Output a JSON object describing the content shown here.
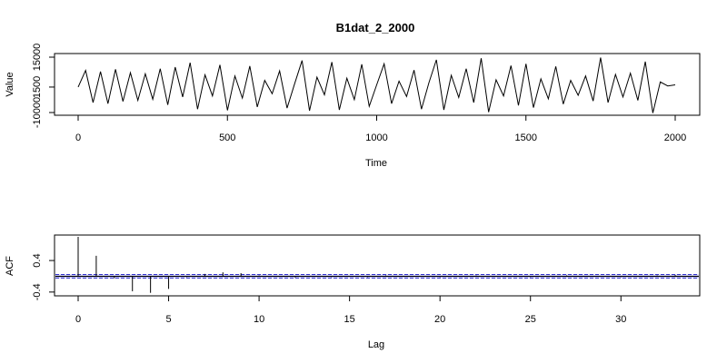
{
  "chart_data": [
    {
      "type": "line",
      "title": "B1dat_2_2000",
      "xlabel": "Time",
      "ylabel": "Value",
      "xlim": [
        0,
        2000
      ],
      "ylim": [
        -10000,
        15000
      ],
      "xticks": [
        0,
        500,
        1000,
        1500,
        2000
      ],
      "xtick_labels": [
        "0",
        "500",
        "1000",
        "1500",
        "2000"
      ],
      "yticks": [
        -10000,
        1500,
        15000
      ],
      "ytick_labels": [
        "-10000",
        "1500",
        "15000"
      ],
      "series": [
        {
          "line_color": "#000000",
          "x": [
            0,
            25,
            50,
            75,
            100,
            125,
            150,
            175,
            200,
            225,
            250,
            275,
            300,
            325,
            350,
            375,
            400,
            425,
            450,
            475,
            500,
            525,
            550,
            575,
            600,
            625,
            650,
            675,
            700,
            725,
            750,
            775,
            800,
            825,
            850,
            875,
            900,
            925,
            950,
            975,
            1000,
            1025,
            1050,
            1075,
            1100,
            1125,
            1150,
            1175,
            1200,
            1225,
            1250,
            1275,
            1300,
            1325,
            1350,
            1375,
            1400,
            1425,
            1450,
            1475,
            1500,
            1525,
            1550,
            1575,
            1600,
            1625,
            1650,
            1675,
            1700,
            1725,
            1750,
            1775,
            1800,
            1825,
            1850,
            1875,
            1900,
            1925,
            1950,
            1975,
            2000
          ],
          "y": [
            1500,
            9000,
            -5500,
            8500,
            -6000,
            9500,
            -5000,
            8000,
            -4500,
            7500,
            -4000,
            9800,
            -6500,
            10500,
            -3000,
            12500,
            -8500,
            7000,
            -2500,
            11500,
            -9000,
            6500,
            -3500,
            11000,
            -7500,
            4500,
            -1500,
            8800,
            -8000,
            3000,
            13500,
            -9200,
            6000,
            -2000,
            12800,
            -8800,
            5500,
            -4200,
            11800,
            -7200,
            2500,
            12000,
            -6000,
            4200,
            -2800,
            9200,
            -8500,
            3500,
            13800,
            -8800,
            6800,
            -3200,
            9800,
            -5500,
            14500,
            -9800,
            4800,
            -2500,
            11200,
            -6800,
            12000,
            -7800,
            5200,
            -3800,
            10800,
            -6200,
            4500,
            -2200,
            6500,
            -4800,
            14800,
            -5500,
            7200,
            -3000,
            7800,
            -4500,
            13000,
            -10200,
            3800,
            2000,
            2500
          ]
        }
      ]
    },
    {
      "type": "bar",
      "xlabel": "Lag",
      "ylabel": "ACF",
      "xlim": [
        0,
        33
      ],
      "ylim": [
        -0.45,
        1.0
      ],
      "xticks": [
        0,
        5,
        10,
        15,
        20,
        25,
        30
      ],
      "xtick_labels": [
        "0",
        "5",
        "10",
        "15",
        "20",
        "25",
        "30"
      ],
      "yticks": [
        -0.4,
        0.4
      ],
      "ytick_labels": [
        "-0.4",
        "0.4"
      ],
      "confidence_band": [
        -0.045,
        0.045
      ],
      "band_color": "#3333cc",
      "lags": [
        0,
        1,
        2,
        3,
        4,
        5,
        6,
        7,
        8,
        9,
        10,
        11,
        12,
        13,
        14,
        15,
        16,
        17,
        18,
        19,
        20,
        21,
        22,
        23,
        24,
        25,
        26,
        27,
        28,
        29,
        30,
        31,
        32,
        33
      ],
      "values": [
        1.0,
        0.52,
        -0.05,
        -0.38,
        -0.42,
        -0.32,
        -0.02,
        0.06,
        0.1,
        0.08,
        0.02,
        -0.01,
        -0.03,
        0.01,
        -0.02,
        0.01,
        -0.02,
        0.02,
        0.01,
        -0.01,
        -0.02,
        0.01,
        0.02,
        -0.01,
        0.01,
        -0.02,
        0.01,
        0.02,
        -0.01,
        0.01,
        -0.02,
        0.01,
        0.02,
        0.03
      ]
    }
  ]
}
